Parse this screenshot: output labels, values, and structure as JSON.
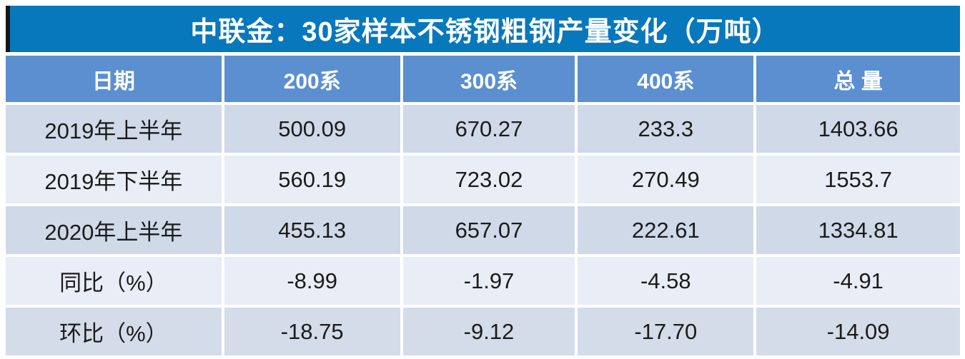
{
  "chart_data": {
    "type": "table",
    "title": "中联金：30家样本不锈钢粗钢产量变化（万吨）",
    "columns": [
      "日期",
      "200系",
      "300系",
      "400系",
      "总 量"
    ],
    "rows": [
      {
        "label": "2019年上半年",
        "values": [
          "500.09",
          "670.27",
          "233.3",
          "1403.66"
        ]
      },
      {
        "label": "2019年下半年",
        "values": [
          "560.19",
          "723.02",
          "270.49",
          "1553.7"
        ]
      },
      {
        "label": "2020年上半年",
        "values": [
          "455.13",
          "657.07",
          "222.61",
          "1334.81"
        ]
      },
      {
        "label": "同比（%）",
        "values": [
          "-8.99",
          "-1.97",
          "-4.58",
          "-4.91"
        ]
      },
      {
        "label": "环比（%）",
        "values": [
          "-18.75",
          "-9.12",
          "-17.70",
          "-14.09"
        ]
      }
    ],
    "layout_hints": {
      "title_bar_color": "#0878bc",
      "title_accent_bar_color": "#161616",
      "header_row_color": "#5b8fd0",
      "odd_row_color": "#cfd9e8",
      "even_row_color": "#e9edf5",
      "header_text_color": "#ffffff",
      "body_text_color": "#1b1b1b",
      "units": "万吨"
    }
  }
}
